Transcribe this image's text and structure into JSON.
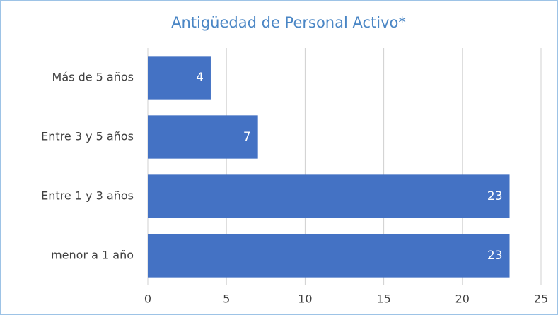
{
  "chart_data": {
    "type": "bar",
    "orientation": "horizontal",
    "title": "Antigüedad de Personal Activo*",
    "categories": [
      "Más de 5 años",
      "Entre 3 y 5 años",
      "Entre 1 y 3 años",
      "menor a 1 año"
    ],
    "values": [
      4,
      7,
      23,
      23
    ],
    "color": "#4472c4",
    "xlim": [
      0,
      25
    ],
    "xticks": [
      0,
      5,
      10,
      15,
      20,
      25
    ],
    "grid": true
  }
}
